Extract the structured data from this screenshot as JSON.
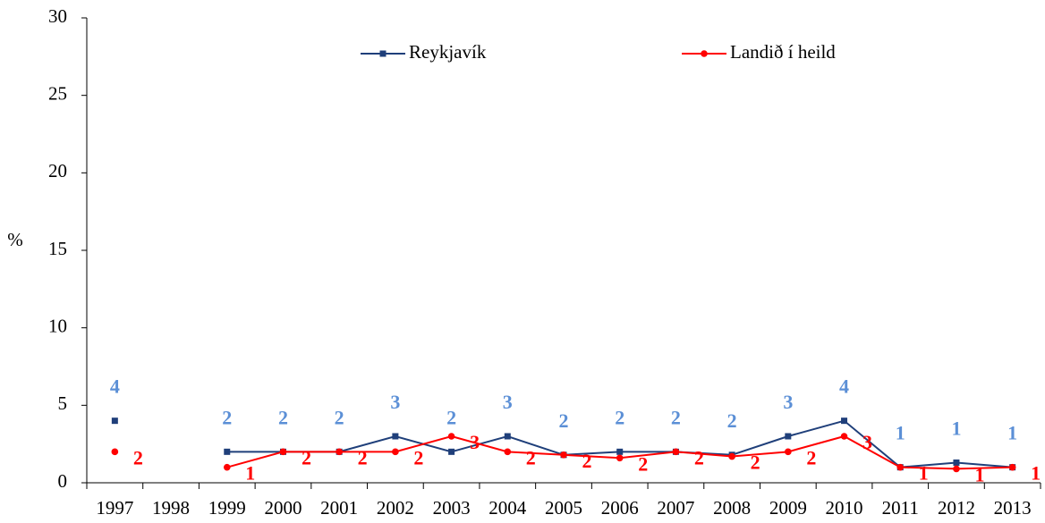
{
  "chart_data": {
    "type": "line",
    "y_label": "%",
    "categories": [
      "1997",
      "1998",
      "1999",
      "2000",
      "2001",
      "2002",
      "2003",
      "2004",
      "2005",
      "2006",
      "2007",
      "2008",
      "2009",
      "2010",
      "2011",
      "2012",
      "2013"
    ],
    "series": [
      {
        "name": "Reykjavík",
        "color": "#1f3f7a",
        "label_color": "#5b8fd6",
        "marker": "square",
        "values": [
          4,
          null,
          2,
          2,
          2,
          3,
          2,
          3,
          1.8,
          2,
          2,
          1.8,
          3,
          4,
          1,
          1.3,
          1
        ],
        "value_labels": [
          "4",
          null,
          "2",
          "2",
          "2",
          "3",
          "2",
          "3",
          "2",
          "2",
          "2",
          "2",
          "3",
          "4",
          "1",
          "1",
          "1"
        ]
      },
      {
        "name": "Landið í heild",
        "color": "#ff0000",
        "label_color": "#ff0000",
        "marker": "circle",
        "values": [
          2,
          null,
          1,
          2,
          2,
          2,
          3,
          2,
          1.8,
          1.6,
          2,
          1.7,
          2,
          3,
          1,
          0.9,
          1
        ],
        "value_labels": [
          "2",
          null,
          "1",
          "2",
          "2",
          "2",
          "3",
          "2",
          "2",
          "2",
          "2",
          "2",
          "2",
          "3",
          "1",
          "1",
          "1"
        ]
      }
    ],
    "ylim": [
      0,
      30
    ],
    "yticks": [
      0,
      5,
      10,
      15,
      20,
      25,
      30
    ],
    "grid": false,
    "legend": "top"
  }
}
